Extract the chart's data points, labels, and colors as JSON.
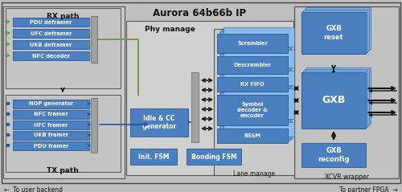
{
  "title": "Aurora 64b66b IP",
  "blue": "#4a7fc0",
  "blue_light": "#6a9fd8",
  "blue_lighter": "#8abce8",
  "blue_dark": "#3060a0",
  "gray_bg": "#c0bfbf",
  "gray_box": "#b8b8b8",
  "gray_inner": "#c8c8c8",
  "gray_mux": "#a0a0a0",
  "white": "#ffffff",
  "black": "#111111",
  "green": "#6a9a3a",
  "arrow_blue": "#1a50a0",
  "rx_blocks": [
    "PDU deframer",
    "UFC deframer",
    "UKB deframer",
    "NFC decoder"
  ],
  "tx_blocks": [
    "NOP generator",
    "NFC framer",
    "UFC framer",
    "UKB framer",
    "PDU framer"
  ],
  "lane_blocks": [
    "Scrambler",
    "Descrambler",
    "RX FIFO",
    "Symbol\ndecoder &\nencoder",
    "BSSM"
  ],
  "xcvr_blocks": [
    "GXB\nreset",
    "GXB",
    "GXB\nreconfig"
  ],
  "bottom_left": "←  To user backend",
  "bottom_right": "To partner FPGA  →",
  "rx_path_label": "RX path",
  "tx_path_label": "TX path",
  "phy_manage_label": "Phy manage",
  "lane_manage_label": "Lane manage",
  "xcvr_label": "XCVR wrapper",
  "idle_cc_label": "Idle & CC\ngenerator",
  "init_fsm_label": "Init. FSM",
  "bonding_fsm_label": "Bonding FSM"
}
